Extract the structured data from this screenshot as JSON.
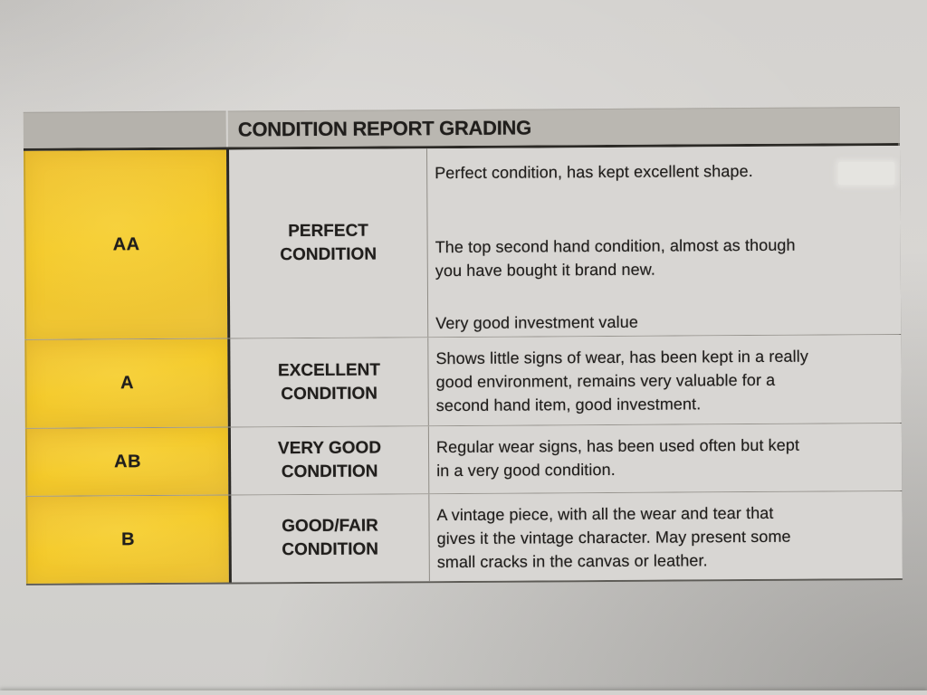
{
  "document": {
    "header": {
      "title": "CONDITION REPORT GRADING"
    },
    "rows": [
      {
        "grade": "AA",
        "condition": "PERFECT CONDITION",
        "description": [
          [
            "Perfect condition, has kept excellent shape."
          ],
          [
            "The top second hand condition, almost as though",
            "you have bought it brand new."
          ],
          [
            "Very good investment value"
          ]
        ]
      },
      {
        "grade": "A",
        "condition": "EXCELLENT CONDITION",
        "description": [
          [
            "Shows little signs of wear, has been kept in a really",
            "good environment, remains very valuable for a",
            "second hand item, good investment."
          ]
        ]
      },
      {
        "grade": "AB",
        "condition": "VERY GOOD CONDITION",
        "description": [
          [
            "Regular wear signs, has been used often but kept",
            "in a very good condition."
          ]
        ]
      },
      {
        "grade": "B",
        "condition": "GOOD/FAIR CONDITION",
        "description": [
          [
            "A vintage piece, with all the wear and tear that",
            "gives it the vintage character. May present some",
            "small cracks in the canvas or leather."
          ]
        ]
      }
    ],
    "colors": {
      "grade_cell_yellow": "#F2C42D",
      "header_gray": "#B8B5AF",
      "paper_gray": "#D6D4D1",
      "text": "#201E1C",
      "border_dark": "#2A2824"
    }
  }
}
